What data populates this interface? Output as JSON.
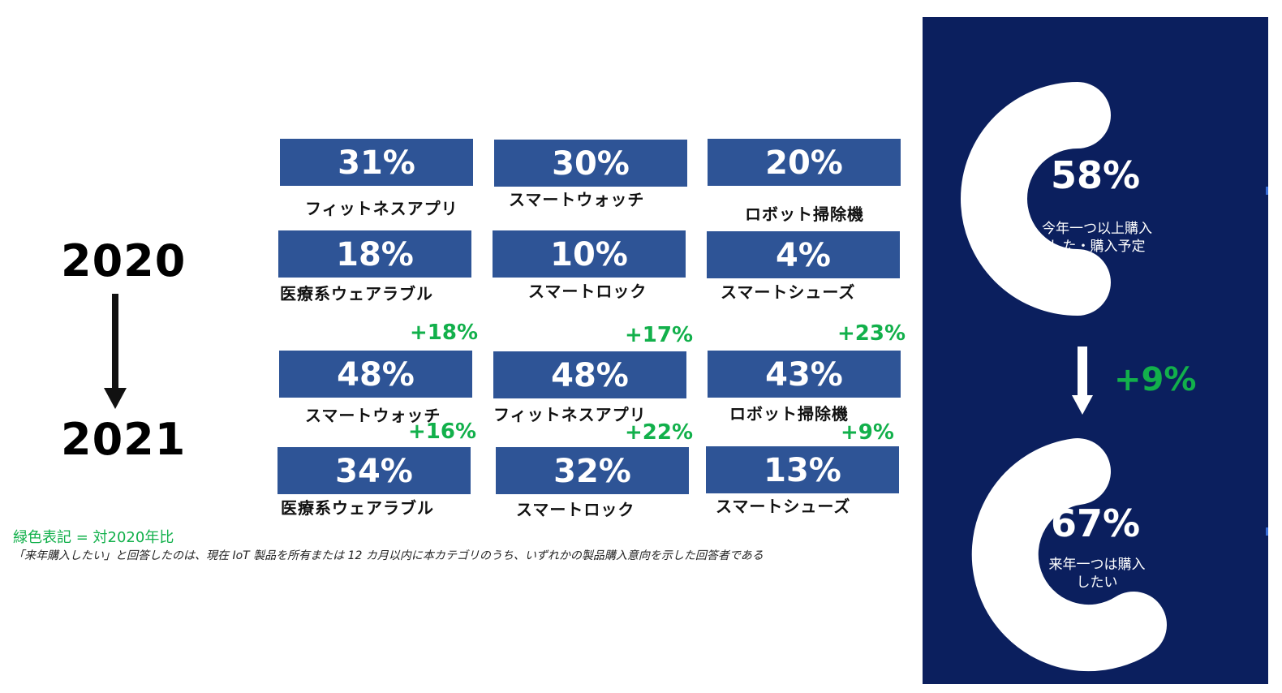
{
  "chart_data": [
    {
      "type": "table",
      "years": [
        "2020",
        "2021"
      ],
      "y2020": [
        {
          "label": "フィットネスアプリ",
          "value": "31%"
        },
        {
          "label": "スマートウォッチ",
          "value": "30%"
        },
        {
          "label": "ロボット掃除機",
          "value": "20%"
        },
        {
          "label": "医療系ウェアラブル",
          "value": "18%"
        },
        {
          "label": "スマートロック",
          "value": "10%"
        },
        {
          "label": "スマートシューズ",
          "value": "4%"
        }
      ],
      "y2021": [
        {
          "label": "スマートウォッチ",
          "value": "48%",
          "change": "+18%"
        },
        {
          "label": "フィットネスアプリ",
          "value": "48%",
          "change": "+17%"
        },
        {
          "label": "ロボット掃除機",
          "value": "43%",
          "change": "+23%"
        },
        {
          "label": "医療系ウェアラブル",
          "value": "34%",
          "change": "+16%"
        },
        {
          "label": "スマートロック",
          "value": "32%",
          "change": "+22%"
        },
        {
          "label": "スマートシューズ",
          "value": "13%",
          "change": "+9%"
        }
      ]
    },
    {
      "type": "pie",
      "top": {
        "value": "58%",
        "label_line1": "今年一つ以上購入",
        "label_line2": "した・購入予定"
      },
      "bottom": {
        "value": "67%",
        "label_line1": "来年一つは購入",
        "label_line2": "したい"
      },
      "change": "+9%"
    }
  ],
  "notes": {
    "legend": "緑色表記 = 対2020年比",
    "footnote": "「来年購入したい」と回答したのは、現在 IoT 製品を所有または 12 カ月以内に本カテゴリのうち、いずれかの製品購入意向を示した回答者である"
  },
  "colors": {
    "box": "#2e5496",
    "panel": "#0b1f5e",
    "accent_green": "#12b04b",
    "white": "#ffffff"
  }
}
